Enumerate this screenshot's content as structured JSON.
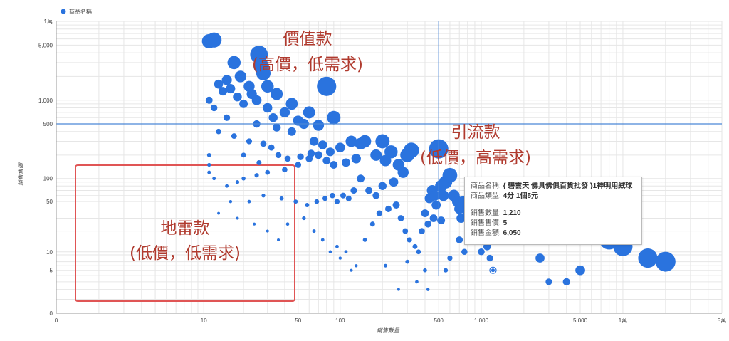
{
  "chart_data": {
    "type": "scatter",
    "title": "",
    "xlabel": "銷售數量",
    "ylabel": "銷售售價",
    "xscale": "log",
    "yscale": "log",
    "xlim": [
      0,
      50000
    ],
    "ylim": [
      0,
      10000
    ],
    "x_ticks": [
      {
        "label": "0",
        "value": 0
      },
      {
        "label": "10",
        "value": 10
      },
      {
        "label": "50",
        "value": 50
      },
      {
        "label": "100",
        "value": 100
      },
      {
        "label": "500",
        "value": 500
      },
      {
        "label": "1,000",
        "value": 1000
      },
      {
        "label": "5,000",
        "value": 5000
      },
      {
        "label": "1萬",
        "value": 10000
      },
      {
        "label": "5萬",
        "value": 50000
      }
    ],
    "y_ticks": [
      {
        "label": "0",
        "value": 0
      },
      {
        "label": "5",
        "value": 5
      },
      {
        "label": "10",
        "value": 10
      },
      {
        "label": "50",
        "value": 50
      },
      {
        "label": "100",
        "value": 100
      },
      {
        "label": "500",
        "value": 500
      },
      {
        "label": "1,000",
        "value": 1000
      },
      {
        "label": "5,000",
        "value": 5000
      },
      {
        "label": "1萬",
        "value": 10000
      }
    ],
    "grid": true,
    "legend": {
      "position": "top-left",
      "entries": [
        "商品名稱"
      ]
    },
    "series_color": "#2a73de",
    "reference_lines": {
      "x": 500,
      "y": 500,
      "color": "#4a86d6"
    },
    "quadrants": [
      {
        "line1": "價值款",
        "line2": "(高價，低需求)"
      },
      {
        "line1": "引流款",
        "line2": "(低價，高需求)"
      },
      {
        "line1": "地雷款",
        "line2": "(低價，低需求)"
      }
    ],
    "highlight_box_color": "#e05555",
    "highlighted_point": {
      "x": 1210,
      "y": 5
    },
    "points": [
      [
        11,
        5600
      ],
      [
        12,
        5800
      ],
      [
        17,
        3000
      ],
      [
        26,
        3800
      ],
      [
        27,
        2700
      ],
      [
        28,
        2200
      ],
      [
        19,
        2000
      ],
      [
        22,
        1500
      ],
      [
        23,
        1200
      ],
      [
        16,
        1400
      ],
      [
        13,
        1600
      ],
      [
        14,
        1300
      ],
      [
        15,
        1800
      ],
      [
        18,
        1100
      ],
      [
        20,
        900
      ],
      [
        25,
        1000
      ],
      [
        30,
        1500
      ],
      [
        35,
        1200
      ],
      [
        80,
        1500
      ],
      [
        60,
        700
      ],
      [
        90,
        600
      ],
      [
        40,
        700
      ],
      [
        45,
        900
      ],
      [
        30,
        800
      ],
      [
        33,
        600
      ],
      [
        50,
        550
      ],
      [
        55,
        500
      ],
      [
        70,
        480
      ],
      [
        35,
        450
      ],
      [
        25,
        500
      ],
      [
        15,
        600
      ],
      [
        12,
        800
      ],
      [
        11,
        1000
      ],
      [
        13,
        400
      ],
      [
        17,
        350
      ],
      [
        22,
        300
      ],
      [
        28,
        280
      ],
      [
        32,
        250
      ],
      [
        45,
        400
      ],
      [
        65,
        300
      ],
      [
        75,
        270
      ],
      [
        120,
        300
      ],
      [
        150,
        300
      ],
      [
        200,
        300
      ],
      [
        140,
        280
      ],
      [
        100,
        250
      ],
      [
        85,
        220
      ],
      [
        70,
        200
      ],
      [
        60,
        180
      ],
      [
        50,
        150
      ],
      [
        40,
        130
      ],
      [
        30,
        120
      ],
      [
        25,
        110
      ],
      [
        20,
        100
      ],
      [
        18,
        90
      ],
      [
        15,
        80
      ],
      [
        12,
        100
      ],
      [
        11,
        200
      ],
      [
        11,
        150
      ],
      [
        11,
        120
      ],
      [
        20,
        200
      ],
      [
        26,
        160
      ],
      [
        36,
        200
      ],
      [
        42,
        180
      ],
      [
        52,
        190
      ],
      [
        62,
        210
      ],
      [
        80,
        170
      ],
      [
        90,
        150
      ],
      [
        110,
        160
      ],
      [
        130,
        180
      ],
      [
        180,
        200
      ],
      [
        210,
        170
      ],
      [
        230,
        220
      ],
      [
        300,
        200
      ],
      [
        320,
        230
      ],
      [
        260,
        150
      ],
      [
        280,
        120
      ],
      [
        240,
        90
      ],
      [
        200,
        80
      ],
      [
        180,
        60
      ],
      [
        160,
        70
      ],
      [
        140,
        100
      ],
      [
        125,
        70
      ],
      [
        115,
        55
      ],
      [
        105,
        60
      ],
      [
        95,
        50
      ],
      [
        88,
        60
      ],
      [
        78,
        55
      ],
      [
        68,
        50
      ],
      [
        58,
        45
      ],
      [
        48,
        50
      ],
      [
        38,
        55
      ],
      [
        28,
        60
      ],
      [
        22,
        50
      ],
      [
        16,
        50
      ],
      [
        13,
        35
      ],
      [
        18,
        30
      ],
      [
        24,
        25
      ],
      [
        30,
        20
      ],
      [
        36,
        15
      ],
      [
        42,
        25
      ],
      [
        55,
        30
      ],
      [
        65,
        20
      ],
      [
        75,
        15
      ],
      [
        85,
        10
      ],
      [
        95,
        12
      ],
      [
        100,
        8
      ],
      [
        110,
        10
      ],
      [
        120,
        5
      ],
      [
        130,
        6
      ],
      [
        150,
        15
      ],
      [
        170,
        25
      ],
      [
        190,
        35
      ],
      [
        220,
        40
      ],
      [
        250,
        45
      ],
      [
        270,
        30
      ],
      [
        290,
        20
      ],
      [
        310,
        15
      ],
      [
        340,
        12
      ],
      [
        360,
        10
      ],
      [
        380,
        20
      ],
      [
        400,
        35
      ],
      [
        430,
        55
      ],
      [
        450,
        70
      ],
      [
        470,
        60
      ],
      [
        500,
        240
      ],
      [
        520,
        80
      ],
      [
        540,
        60
      ],
      [
        560,
        90
      ],
      [
        600,
        110
      ],
      [
        640,
        60
      ],
      [
        680,
        50
      ],
      [
        700,
        40
      ],
      [
        720,
        30
      ],
      [
        760,
        50
      ],
      [
        800,
        35
      ],
      [
        850,
        25
      ],
      [
        900,
        20
      ],
      [
        950,
        15
      ],
      [
        1000,
        10
      ],
      [
        1100,
        12
      ],
      [
        1150,
        8
      ],
      [
        1210,
        5
      ],
      [
        1300,
        30
      ],
      [
        1500,
        40
      ],
      [
        1700,
        60
      ],
      [
        2000,
        50
      ],
      [
        2200,
        20
      ],
      [
        2600,
        8
      ],
      [
        3000,
        3
      ],
      [
        4000,
        3
      ],
      [
        5000,
        5
      ],
      [
        8000,
        15
      ],
      [
        10000,
        12
      ],
      [
        15000,
        8
      ],
      [
        20000,
        7
      ],
      [
        300,
        7
      ],
      [
        350,
        3
      ],
      [
        400,
        5
      ],
      [
        420,
        2
      ],
      [
        260,
        2
      ],
      [
        210,
        6
      ],
      [
        560,
        5
      ],
      [
        600,
        8
      ],
      [
        700,
        15
      ],
      [
        760,
        10
      ],
      [
        520,
        28
      ],
      [
        480,
        45
      ],
      [
        460,
        30
      ],
      [
        420,
        25
      ]
    ]
  },
  "tooltip": {
    "name_label": "商品名稱:",
    "name_value": "{ 碧雲天 佛具佛俱百貨批發 }1神明用絨球",
    "type_label": "商品類型:",
    "type_value": "4分 1個5元",
    "qty_label": "銷售數量:",
    "qty_value": "1,210",
    "price_label": "銷售售價:",
    "price_value": "5",
    "amount_label": "銷售金額:",
    "amount_value": "6,050"
  }
}
